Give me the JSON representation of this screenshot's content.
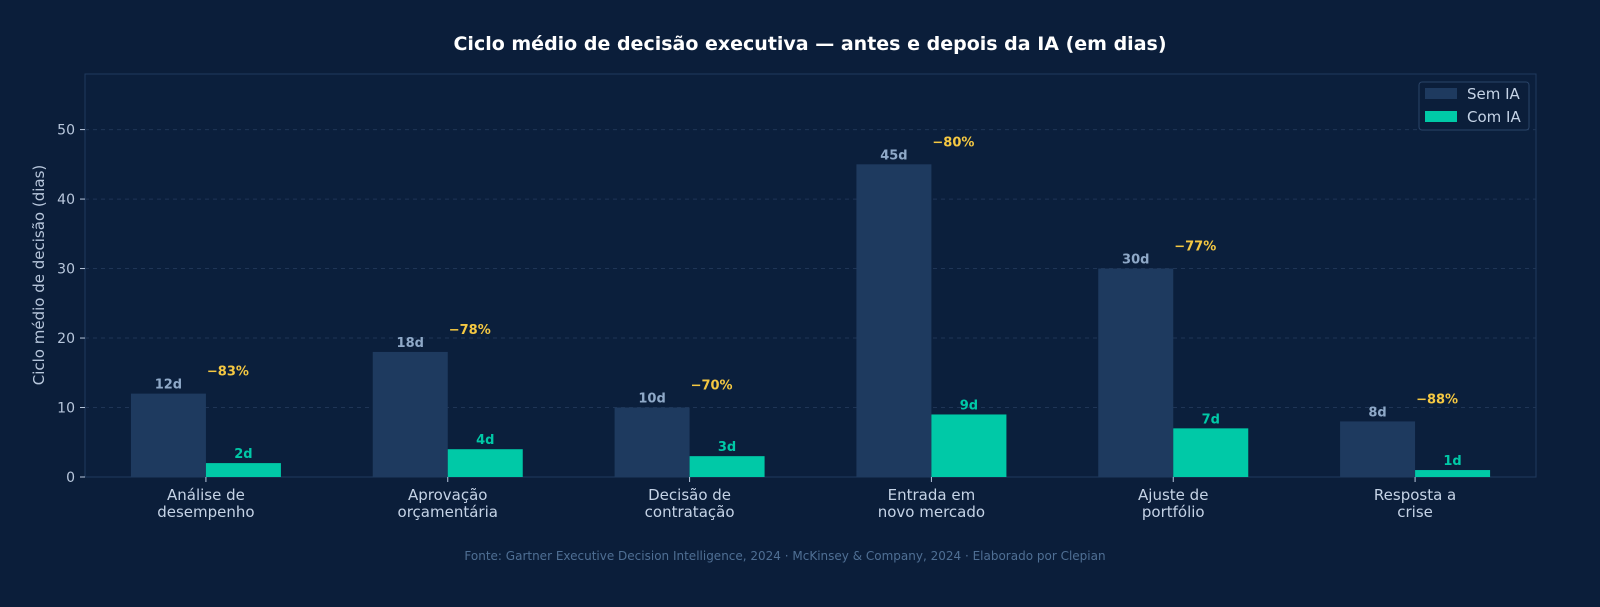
{
  "chart_data": {
    "type": "bar",
    "title": "Ciclo médio de decisão executiva — antes e depois da IA (em dias)",
    "xlabel": "",
    "ylabel": "Ciclo médio de decisão (dias)",
    "ylim": [
      0,
      58
    ],
    "yticks": [
      0,
      10,
      20,
      30,
      40,
      50
    ],
    "grid": true,
    "legend_position": "top-right",
    "categories": [
      [
        "Análise de",
        "desempenho"
      ],
      [
        "Aprovação",
        "orçamentária"
      ],
      [
        "Decisão de",
        "contratação"
      ],
      [
        "Entrada em",
        "novo mercado"
      ],
      [
        "Ajuste de",
        "portfólio"
      ],
      [
        "Resposta a",
        "crise"
      ]
    ],
    "series": [
      {
        "name": "Sem IA",
        "color": "#1e3a5f",
        "values": [
          12,
          18,
          10,
          45,
          30,
          8
        ],
        "labels": [
          "12d",
          "18d",
          "10d",
          "45d",
          "30d",
          "8d"
        ]
      },
      {
        "name": "Com IA",
        "color": "#00c9a7",
        "values": [
          2,
          4,
          3,
          9,
          7,
          1
        ],
        "labels": [
          "2d",
          "4d",
          "3d",
          "9d",
          "7d",
          "1d"
        ]
      }
    ],
    "reductions": [
      "−83%",
      "−78%",
      "−70%",
      "−80%",
      "−77%",
      "−88%"
    ],
    "source": "Fonte: Gartner Executive Decision Intelligence, 2024 · McKinsey & Company, 2024 · Elaborado por Clepian"
  }
}
